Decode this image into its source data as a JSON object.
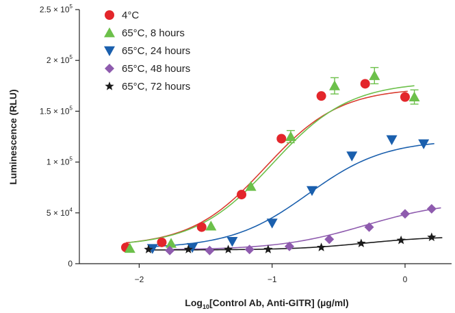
{
  "chart_data": {
    "type": "scatter",
    "xlabel_prefix": "Log",
    "xlabel_sub": "10",
    "xlabel_rest": "[Control Ab, Anti-GITR] (µg/ml)",
    "ylabel": "Luminescence (RLU)",
    "xlim": [
      -2.45,
      0.35
    ],
    "ylim": [
      0,
      250000
    ],
    "grid": false,
    "legend_position": "top-left",
    "x_ticks": [
      {
        "value": -2,
        "label": "−2"
      },
      {
        "value": -1,
        "label": "−1"
      },
      {
        "value": 0,
        "label": "0"
      }
    ],
    "y_ticks": [
      {
        "value": 0,
        "label": "0",
        "exp": ""
      },
      {
        "value": 50000,
        "label": "5 × 10",
        "exp": "4"
      },
      {
        "value": 100000,
        "label": "1 × 10",
        "exp": "5"
      },
      {
        "value": 150000,
        "label": "1.5 × 10",
        "exp": "5"
      },
      {
        "value": 200000,
        "label": "2 × 10",
        "exp": "5"
      },
      {
        "value": 250000,
        "label": "2.5 × 10",
        "exp": "5"
      }
    ],
    "series": [
      {
        "name": "4°C",
        "marker": "circle",
        "marker_color": "#e3262b",
        "line_color": "#d93a2e",
        "points": [
          {
            "x": -2.1,
            "y": 16000
          },
          {
            "x": -1.83,
            "y": 21000
          },
          {
            "x": -1.53,
            "y": 36000
          },
          {
            "x": -1.23,
            "y": 68000
          },
          {
            "x": -0.93,
            "y": 123000
          },
          {
            "x": -0.63,
            "y": 165000
          },
          {
            "x": -0.3,
            "y": 177000
          },
          {
            "x": 0.0,
            "y": 164000
          }
        ],
        "curve": {
          "bottom": 17000,
          "top": 173000,
          "ec50": -1.05,
          "hill": 1.55,
          "x_end": 0.02
        }
      },
      {
        "name": "65°C, 8 hours",
        "marker": "triangle-up",
        "marker_color": "#6cc04a",
        "line_color": "#6cc04a",
        "points": [
          {
            "x": -2.07,
            "y": 15000,
            "err": 0
          },
          {
            "x": -1.76,
            "y": 20000,
            "err": 0
          },
          {
            "x": -1.46,
            "y": 37000,
            "err": 0
          },
          {
            "x": -1.16,
            "y": 76000,
            "err": 0
          },
          {
            "x": -0.86,
            "y": 125000,
            "err": 6000
          },
          {
            "x": -0.53,
            "y": 175000,
            "err": 8000
          },
          {
            "x": -0.23,
            "y": 185000,
            "err": 8000
          },
          {
            "x": 0.07,
            "y": 164000,
            "err": 7000
          }
        ],
        "curve": {
          "bottom": 17000,
          "top": 179000,
          "ec50": -1.0,
          "hill": 1.5,
          "x_end": 0.07
        }
      },
      {
        "name": "65°C, 24 hours",
        "marker": "triangle-down",
        "marker_color": "#1a5fad",
        "line_color": "#1a5fad",
        "points": [
          {
            "x": -1.9,
            "y": 15000
          },
          {
            "x": -1.6,
            "y": 16000
          },
          {
            "x": -1.3,
            "y": 22000
          },
          {
            "x": -1.0,
            "y": 40000
          },
          {
            "x": -0.7,
            "y": 72000
          },
          {
            "x": -0.4,
            "y": 106000
          },
          {
            "x": -0.1,
            "y": 122000
          },
          {
            "x": 0.14,
            "y": 118000
          }
        ],
        "curve": {
          "bottom": 15000,
          "top": 122000,
          "ec50": -0.73,
          "hill": 1.5,
          "x_end": 0.22
        }
      },
      {
        "name": "65°C, 48 hours",
        "marker": "diamond",
        "marker_color": "#8e5bae",
        "line_color": "#8e5bae",
        "points": [
          {
            "x": -1.77,
            "y": 13000
          },
          {
            "x": -1.47,
            "y": 13000
          },
          {
            "x": -1.17,
            "y": 14000
          },
          {
            "x": -0.87,
            "y": 17000
          },
          {
            "x": -0.57,
            "y": 24000
          },
          {
            "x": -0.27,
            "y": 36000
          },
          {
            "x": 0.0,
            "y": 49000
          },
          {
            "x": 0.2,
            "y": 54000
          }
        ],
        "curve": {
          "bottom": 13500,
          "top": 62000,
          "ec50": -0.3,
          "hill": 1.35,
          "x_end": 0.27
        }
      },
      {
        "name": "65°C, 72 hours",
        "marker": "star",
        "marker_color": "#1b1b1b",
        "line_color": "#1b1b1b",
        "points": [
          {
            "x": -1.93,
            "y": 14000
          },
          {
            "x": -1.63,
            "y": 14000
          },
          {
            "x": -1.33,
            "y": 14000
          },
          {
            "x": -1.03,
            "y": 14000
          },
          {
            "x": -0.63,
            "y": 16000
          },
          {
            "x": -0.33,
            "y": 20000
          },
          {
            "x": -0.03,
            "y": 23000
          },
          {
            "x": 0.2,
            "y": 26000
          }
        ],
        "curve": {
          "bottom": 13500,
          "top": 27000,
          "ec50": -0.3,
          "hill": 1.6,
          "x_end": 0.28
        }
      }
    ]
  }
}
